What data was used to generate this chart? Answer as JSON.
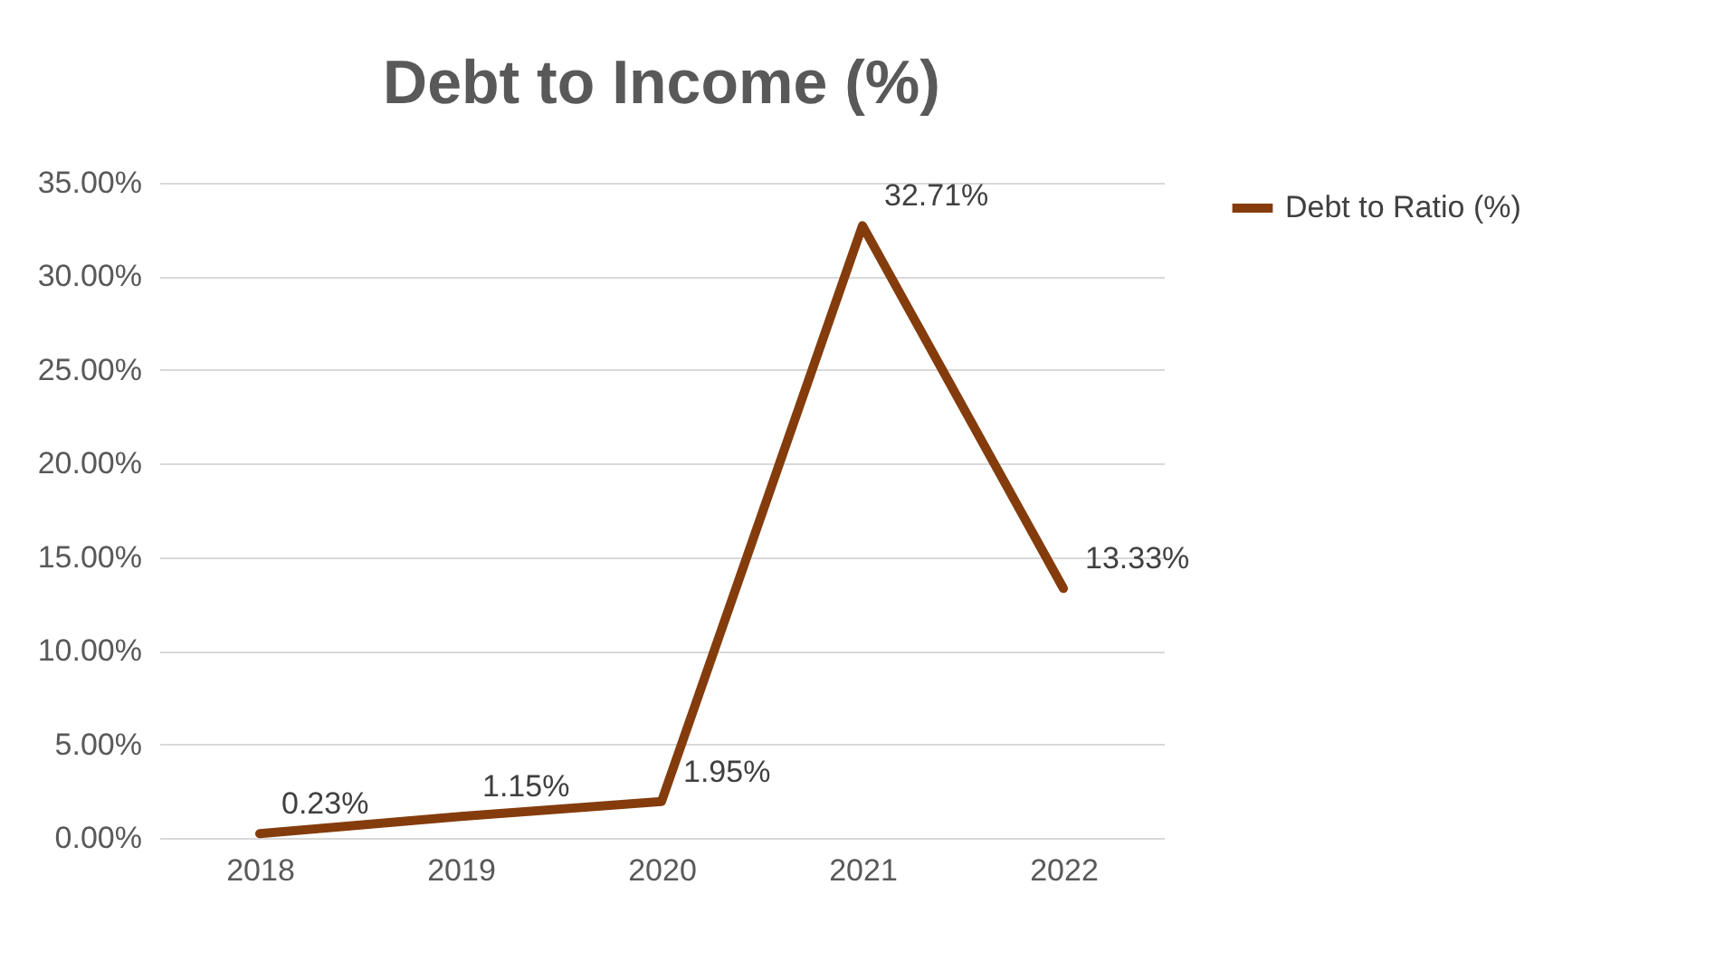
{
  "chart_data": {
    "type": "line",
    "title": "Debt to Income (%)",
    "categories": [
      "2018",
      "2019",
      "2020",
      "2021",
      "2022"
    ],
    "series": [
      {
        "name": "Debt to Ratio (%)",
        "color": "#843c0c",
        "values": [
          0.23,
          1.15,
          1.95,
          32.71,
          13.33
        ],
        "value_labels": [
          "0.23%",
          "1.15%",
          "1.95%",
          "32.71%",
          "13.33%"
        ]
      }
    ],
    "ylim": [
      0,
      35
    ],
    "yticks": [
      {
        "value": 0,
        "label": "0.00%"
      },
      {
        "value": 5,
        "label": "5.00%"
      },
      {
        "value": 10,
        "label": "10.00%"
      },
      {
        "value": 15,
        "label": "15.00%"
      },
      {
        "value": 20,
        "label": "20.00%"
      },
      {
        "value": 25,
        "label": "25.00%"
      },
      {
        "value": 30,
        "label": "30.00%"
      },
      {
        "value": 35,
        "label": "35.00%"
      }
    ],
    "grid": "y",
    "legend": "right",
    "marker": "none",
    "line_style": "solid"
  }
}
